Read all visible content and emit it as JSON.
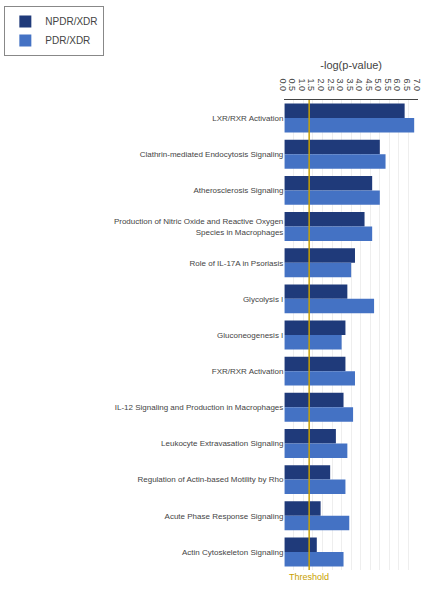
{
  "chart_data": {
    "type": "bar",
    "orientation": "horizontal",
    "categories": [
      "LXR/RXR Activation",
      "Clathrin-mediated Endocytosis Signaling",
      "Atherosclerosis Signaling",
      "Production of Nitric Oxide and Reactive Oxygen\nSpecies in Macrophages",
      "Role of IL-17A in Psoriasis",
      "Glycolysis I",
      "Gluconeogenesis I",
      "FXR/RXR Activation",
      "IL-12 Signaling and Production in Macrophages",
      "Leukocyte Extravasation Signaling",
      "Regulation of Actin-based Motility by Rho",
      "Acute Phase Response Signaling",
      "Actin Cytoskeleton Signaling"
    ],
    "series": [
      {
        "name": "NPDR/XDR",
        "color": "#1f3a7a",
        "values": [
          6.3,
          5.0,
          4.6,
          4.2,
          3.7,
          3.3,
          3.2,
          3.2,
          3.1,
          2.7,
          2.4,
          1.9,
          1.7
        ]
      },
      {
        "name": "PDR/XDR",
        "color": "#4472c4",
        "values": [
          6.8,
          5.3,
          5.0,
          4.6,
          3.5,
          4.7,
          3.0,
          3.7,
          3.6,
          3.3,
          3.2,
          3.4,
          3.1
        ]
      }
    ],
    "xlabel": "-log(p-value)",
    "xlim": [
      0.0,
      7.0
    ],
    "xticks": [
      {
        "value": 0.0,
        "label": "0.0"
      },
      0.5,
      {
        "value": 1.0,
        "label": "1.0"
      },
      1.5,
      {
        "value": 2.0,
        "label": "2.0"
      },
      2.5,
      {
        "value": 3.0,
        "label": "3.0"
      },
      3.5,
      {
        "value": 4.0,
        "label": "4.0"
      },
      4.5,
      {
        "value": 5.0,
        "label": "5.0"
      },
      5.5,
      {
        "value": 6.0,
        "label": "6.0"
      },
      6.5,
      {
        "value": 7.0,
        "label": "7.0"
      }
    ],
    "threshold": {
      "value": 1.3,
      "label": "Threshold",
      "color": "#c8a000"
    },
    "grid": true,
    "legend": "upper left"
  }
}
